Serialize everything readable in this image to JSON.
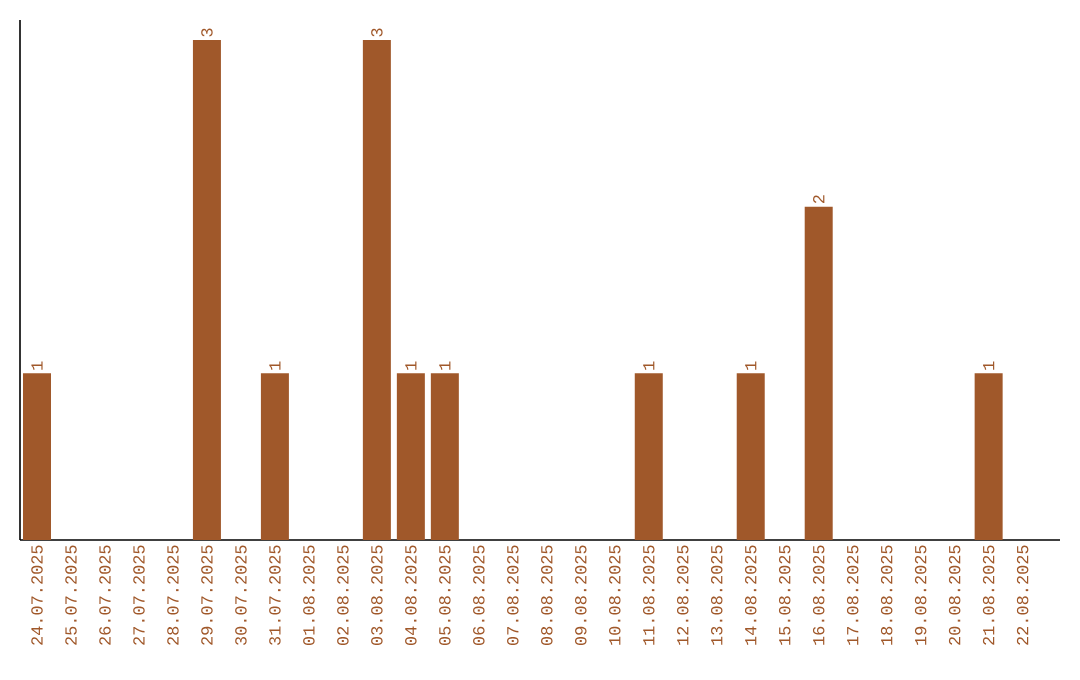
{
  "chart_data": {
    "type": "bar",
    "color": "#a0582a",
    "categories": [
      "24.07.2025",
      "25.07.2025",
      "26.07.2025",
      "27.07.2025",
      "28.07.2025",
      "29.07.2025",
      "30.07.2025",
      "31.07.2025",
      "01.08.2025",
      "02.08.2025",
      "03.08.2025",
      "04.08.2025",
      "05.08.2025",
      "06.08.2025",
      "07.08.2025",
      "08.08.2025",
      "09.08.2025",
      "10.08.2025",
      "11.08.2025",
      "12.08.2025",
      "13.08.2025",
      "14.08.2025",
      "15.08.2025",
      "16.08.2025",
      "17.08.2025",
      "18.08.2025",
      "19.08.2025",
      "20.08.2025",
      "21.08.2025",
      "22.08.2025"
    ],
    "values": [
      1,
      0,
      0,
      0,
      0,
      3,
      0,
      1,
      0,
      0,
      3,
      1,
      1,
      0,
      0,
      0,
      0,
      0,
      1,
      0,
      0,
      1,
      0,
      2,
      0,
      0,
      0,
      0,
      1,
      0
    ],
    "value_labels": [
      "1",
      null,
      null,
      null,
      null,
      "3",
      null,
      "1",
      null,
      null,
      "3",
      "1",
      "1",
      null,
      null,
      null,
      null,
      null,
      "1",
      null,
      null,
      "1",
      null,
      "2",
      null,
      null,
      null,
      null,
      "1",
      null
    ],
    "ylim": [
      0,
      3.12
    ],
    "tick_labels": "x"
  }
}
